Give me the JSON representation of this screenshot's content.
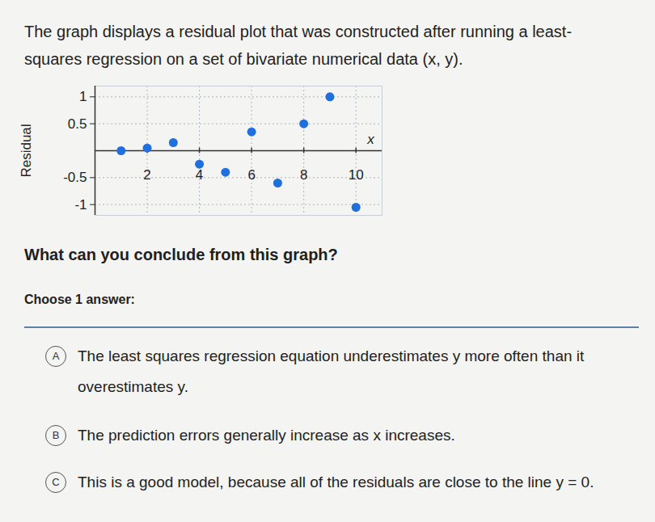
{
  "question": "The graph displays a residual plot that was constructed after running a least-squares regression on a set of bivariate numerical data (x, y).",
  "chart_data": {
    "type": "scatter",
    "x_label": "x",
    "y_label": "Residual",
    "x": [
      1,
      2,
      3,
      4,
      5,
      6,
      7,
      8,
      9,
      10
    ],
    "values": [
      0,
      0.05,
      0.15,
      -0.25,
      -0.4,
      0.35,
      -0.6,
      0.5,
      1.0,
      -1.05
    ],
    "color": "#1f6fdc",
    "xlim": [
      0,
      11
    ],
    "ylim": [
      -1.2,
      1.2
    ],
    "xticks": [
      2,
      4,
      6,
      8,
      10
    ],
    "yticks": [
      -1,
      -0.5,
      0.5,
      1
    ],
    "grid": true
  },
  "prompt": "What can you conclude from this graph?",
  "instruction": "Choose 1 answer:",
  "choices": [
    {
      "letter": "A",
      "text": "The least squares regression equation underestimates y more often than it overestimates y."
    },
    {
      "letter": "B",
      "text": "The prediction errors generally increase as x increases."
    },
    {
      "letter": "C",
      "text": "This is a good model, because all of the residuals are close to the line y = 0."
    }
  ]
}
